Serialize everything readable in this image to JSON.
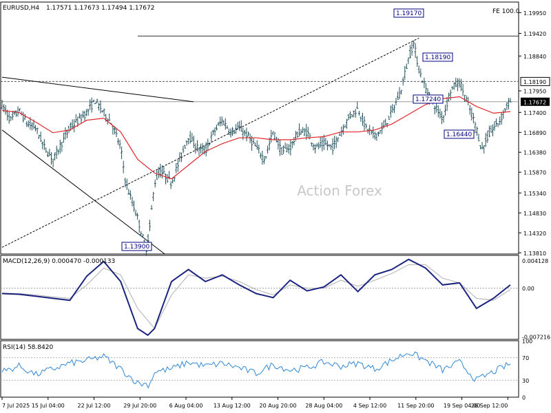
{
  "header": {
    "symbol": "EURUSD,H4",
    "ohlc": "1.17571 1.17673 1.17494 1.17672",
    "fe_label": "FE 100.0",
    "watermark": "Action Forex"
  },
  "chart_data": [
    {
      "type": "candlestick",
      "title": "EURUSD,H4 1.17571 1.17673 1.17494 1.17672",
      "ylim": [
        1.1378,
        1.2022
      ],
      "y_ticks": [
        "1.19950",
        "1.19420",
        "1.18840",
        "1.18190",
        "1.17950",
        "1.17672",
        "1.17400",
        "1.16890",
        "1.16380",
        "1.15870",
        "1.15340",
        "1.14830",
        "1.14320",
        "1.13810"
      ],
      "x_ticks": [
        "7 Jul 2025",
        "15 Jul 04:00",
        "22 Jul 12:00",
        "29 Jul 20:00",
        "6 Aug 04:00",
        "13 Aug 12:00",
        "20 Aug 20:00",
        "28 Aug 04:00",
        "4 Sep 12:00",
        "11 Sep 20:00",
        "19 Sep 04:00",
        "26 Sep 12:00"
      ],
      "last_price": "1.17672",
      "h_lines": [
        {
          "label": "1.18190",
          "value": 1.1819,
          "style": "dashed"
        },
        {
          "label": "1.17672",
          "value": 1.17672,
          "style": "solid"
        }
      ],
      "annotations": [
        "1.13900",
        "1.19170",
        "1.18190",
        "1.17240",
        "1.16440"
      ],
      "fe_label": "FE 100.0",
      "price_path": [
        [
          0,
          1.176
        ],
        [
          0.5,
          1.172
        ],
        [
          1,
          1.1745
        ],
        [
          1.5,
          1.171
        ],
        [
          2,
          1.17
        ],
        [
          2.5,
          1.165
        ],
        [
          3,
          1.162
        ],
        [
          3.5,
          1.166
        ],
        [
          4,
          1.17
        ],
        [
          4.5,
          1.172
        ],
        [
          5,
          1.174
        ],
        [
          5.5,
          1.177
        ],
        [
          6,
          1.174
        ],
        [
          6.5,
          1.171
        ],
        [
          7,
          1.165
        ],
        [
          7.3,
          1.156
        ],
        [
          7.6,
          1.152
        ],
        [
          8,
          1.147
        ],
        [
          8.3,
          1.142
        ],
        [
          8.5,
          1.139
        ],
        [
          8.7,
          1.144
        ],
        [
          9,
          1.156
        ],
        [
          9.3,
          1.159
        ],
        [
          9.6,
          1.158
        ],
        [
          10,
          1.156
        ],
        [
          10.5,
          1.162
        ],
        [
          11,
          1.168
        ],
        [
          11.5,
          1.165
        ],
        [
          12,
          1.164
        ],
        [
          12.5,
          1.169
        ],
        [
          13,
          1.172
        ],
        [
          13.5,
          1.169
        ],
        [
          14,
          1.17
        ],
        [
          14.5,
          1.168
        ],
        [
          15,
          1.165
        ],
        [
          15.5,
          1.162
        ],
        [
          16,
          1.169
        ],
        [
          16.5,
          1.164
        ],
        [
          17,
          1.165
        ],
        [
          17.5,
          1.169
        ],
        [
          18,
          1.169
        ],
        [
          18.5,
          1.165
        ],
        [
          19,
          1.166
        ],
        [
          19.5,
          1.165
        ],
        [
          20,
          1.169
        ],
        [
          20.5,
          1.173
        ],
        [
          21,
          1.175
        ],
        [
          21.5,
          1.17
        ],
        [
          22,
          1.168
        ],
        [
          22.5,
          1.17
        ],
        [
          23,
          1.174
        ],
        [
          23.5,
          1.179
        ],
        [
          24,
          1.188
        ],
        [
          24.3,
          1.1917
        ],
        [
          24.6,
          1.185
        ],
        [
          25,
          1.18
        ],
        [
          25.5,
          1.176
        ],
        [
          26,
          1.1724
        ],
        [
          26.5,
          1.18
        ],
        [
          27,
          1.1819
        ],
        [
          27.5,
          1.176
        ],
        [
          28,
          1.17
        ],
        [
          28.3,
          1.1644
        ],
        [
          28.7,
          1.168
        ],
        [
          29,
          1.17
        ],
        [
          29.4,
          1.172
        ],
        [
          29.8,
          1.176
        ],
        [
          30,
          1.1767
        ]
      ],
      "sma": [
        [
          0,
          1.1745
        ],
        [
          1,
          1.174
        ],
        [
          2,
          1.1715
        ],
        [
          3,
          1.1688
        ],
        [
          4,
          1.1695
        ],
        [
          5,
          1.172
        ],
        [
          6,
          1.1725
        ],
        [
          7,
          1.169
        ],
        [
          8,
          1.162
        ],
        [
          9,
          1.1585
        ],
        [
          10,
          1.157
        ],
        [
          11,
          1.1605
        ],
        [
          12,
          1.164
        ],
        [
          13,
          1.166
        ],
        [
          14,
          1.1675
        ],
        [
          15,
          1.1675
        ],
        [
          16,
          1.167
        ],
        [
          17,
          1.167
        ],
        [
          18,
          1.1675
        ],
        [
          19,
          1.1678
        ],
        [
          20,
          1.169
        ],
        [
          21,
          1.169
        ],
        [
          22,
          1.1695
        ],
        [
          23,
          1.171
        ],
        [
          24,
          1.1735
        ],
        [
          25,
          1.176
        ],
        [
          26,
          1.1775
        ],
        [
          27,
          1.178
        ],
        [
          28,
          1.1755
        ],
        [
          29,
          1.1738
        ],
        [
          30,
          1.1742
        ]
      ]
    },
    {
      "type": "line",
      "title": "MACD(12,26,9) 0.000470 -0.000133",
      "ylim": [
        -0.00762,
        0.0049
      ],
      "y_ticks": [
        "0.004128",
        "0.00",
        "-0.007216"
      ],
      "series": [
        {
          "name": "MACD",
          "points": [
            [
              0,
              -0.0008
            ],
            [
              1,
              -0.0009
            ],
            [
              2,
              -0.0012
            ],
            [
              3,
              -0.0015
            ],
            [
              4,
              -0.0018
            ],
            [
              5,
              0.0018
            ],
            [
              6,
              0.004
            ],
            [
              7,
              0.001
            ],
            [
              8,
              -0.006
            ],
            [
              8.6,
              -0.007
            ],
            [
              9,
              -0.006
            ],
            [
              10,
              0.001
            ],
            [
              11,
              0.0028
            ],
            [
              12,
              0.001
            ],
            [
              13,
              0.002
            ],
            [
              14,
              0.0005
            ],
            [
              15,
              -0.0008
            ],
            [
              16,
              -0.0014
            ],
            [
              17,
              0.0012
            ],
            [
              18,
              -0.0004
            ],
            [
              19,
              0.0002
            ],
            [
              20,
              0.002
            ],
            [
              21,
              -0.0005
            ],
            [
              22,
              0.002
            ],
            [
              23,
              0.0028
            ],
            [
              24,
              0.0043
            ],
            [
              25,
              0.003
            ],
            [
              26,
              0.0005
            ],
            [
              27,
              0.0008
            ],
            [
              28,
              -0.003
            ],
            [
              29,
              -0.0015
            ],
            [
              30,
              0.0005
            ]
          ]
        },
        {
          "name": "Signal",
          "points": [
            [
              0,
              -0.0007
            ],
            [
              1,
              -0.0008
            ],
            [
              2,
              -0.001
            ],
            [
              3,
              -0.0013
            ],
            [
              4,
              -0.0015
            ],
            [
              5,
              0.0005
            ],
            [
              6,
              0.003
            ],
            [
              7,
              0.002
            ],
            [
              8,
              -0.003
            ],
            [
              9,
              -0.006
            ],
            [
              10,
              -0.001
            ],
            [
              11,
              0.002
            ],
            [
              12,
              0.0015
            ],
            [
              13,
              0.0018
            ],
            [
              14,
              0.001
            ],
            [
              15,
              -0.0002
            ],
            [
              16,
              -0.001
            ],
            [
              17,
              0.0005
            ],
            [
              18,
              0.0
            ],
            [
              19,
              0.0
            ],
            [
              20,
              0.0012
            ],
            [
              21,
              0.0003
            ],
            [
              22,
              0.0012
            ],
            [
              23,
              0.0022
            ],
            [
              24,
              0.0035
            ],
            [
              25,
              0.0035
            ],
            [
              26,
              0.0015
            ],
            [
              27,
              0.0008
            ],
            [
              28,
              -0.0015
            ],
            [
              29,
              -0.0018
            ],
            [
              30,
              -0.0002
            ]
          ]
        }
      ]
    },
    {
      "type": "line",
      "title": "RSI(14) 58.8420",
      "ylim": [
        0,
        100
      ],
      "y_ticks": [
        "100",
        "70",
        "30",
        "0"
      ],
      "levels": [
        70,
        30
      ],
      "series": [
        {
          "name": "RSI",
          "points": [
            [
              0,
              45
            ],
            [
              1,
              55
            ],
            [
              2,
              40
            ],
            [
              3,
              50
            ],
            [
              4,
              60
            ],
            [
              5,
              65
            ],
            [
              6,
              72
            ],
            [
              7,
              50
            ],
            [
              8,
              25
            ],
            [
              8.7,
              22
            ],
            [
              9,
              45
            ],
            [
              10,
              50
            ],
            [
              11,
              62
            ],
            [
              12,
              55
            ],
            [
              13,
              60
            ],
            [
              14,
              52
            ],
            [
              15,
              42
            ],
            [
              16,
              58
            ],
            [
              17,
              48
            ],
            [
              18,
              52
            ],
            [
              19,
              62
            ],
            [
              20,
              55
            ],
            [
              21,
              60
            ],
            [
              22,
              50
            ],
            [
              23,
              65
            ],
            [
              24,
              80
            ],
            [
              25,
              65
            ],
            [
              26,
              48
            ],
            [
              27,
              62
            ],
            [
              28,
              30
            ],
            [
              29,
              45
            ],
            [
              30,
              59
            ]
          ]
        }
      ]
    }
  ]
}
